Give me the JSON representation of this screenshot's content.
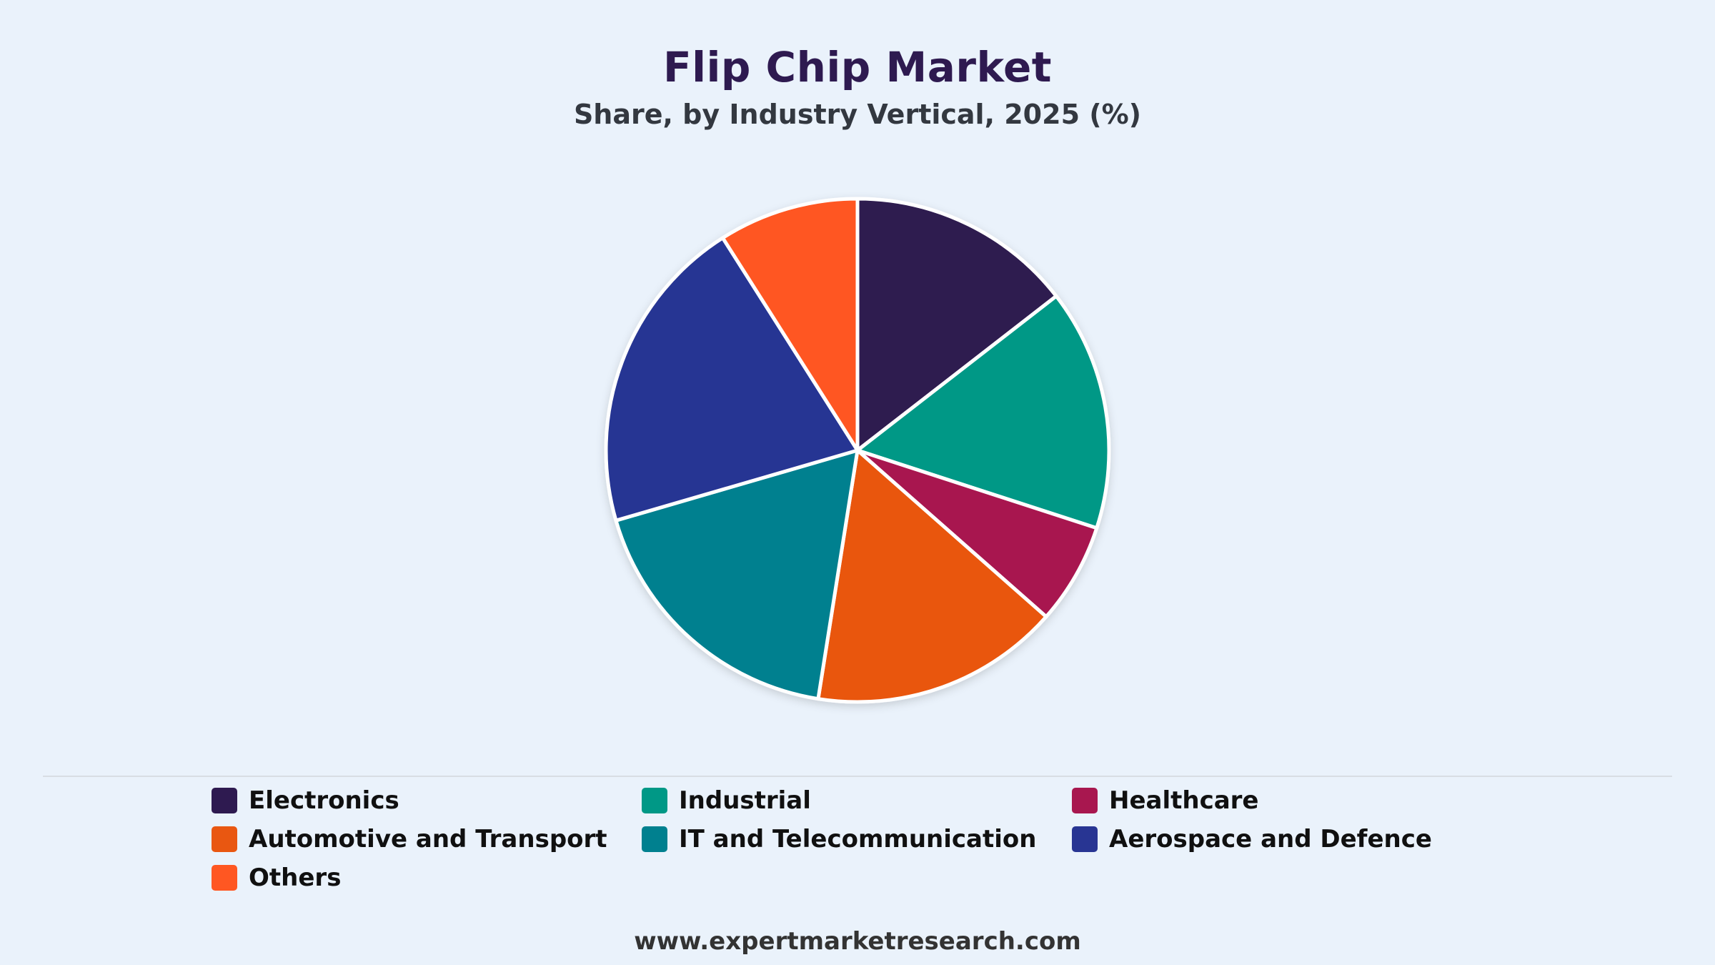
{
  "title": "Flip Chip Market",
  "subtitle": "Share, by Industry Vertical, 2025 (%)",
  "source": "www.expertmarketresearch.com",
  "chart_data": {
    "type": "pie",
    "title": "Flip Chip Market",
    "subtitle": "Share, by Industry Vertical, 2025 (%)",
    "start_angle_deg": 0,
    "direction": "clockwise",
    "legend_position": "bottom",
    "categories": [
      "Electronics",
      "Industrial",
      "Healthcare",
      "Automotive and Transport",
      "IT and Telecommunication",
      "Aerospace and Defence",
      "Others"
    ],
    "values": [
      14.5,
      15.5,
      6.5,
      16.0,
      18.0,
      20.5,
      9.0
    ],
    "colors": [
      "#2e1a50",
      "#009886",
      "#a8174f",
      "#e95711",
      "#00808f",
      "#283593",
      "#ff5722"
    ]
  },
  "legend": {
    "items": [
      {
        "label": "Electronics",
        "color": "#2e1a50"
      },
      {
        "label": "Industrial",
        "color": "#009886"
      },
      {
        "label": "Healthcare",
        "color": "#a8174f"
      },
      {
        "label": "Automotive and Transport",
        "color": "#e95711"
      },
      {
        "label": "IT and Telecommunication",
        "color": "#00808f"
      },
      {
        "label": "Aerospace and Defence",
        "color": "#283593"
      },
      {
        "label": "Others",
        "color": "#ff5722"
      }
    ]
  }
}
